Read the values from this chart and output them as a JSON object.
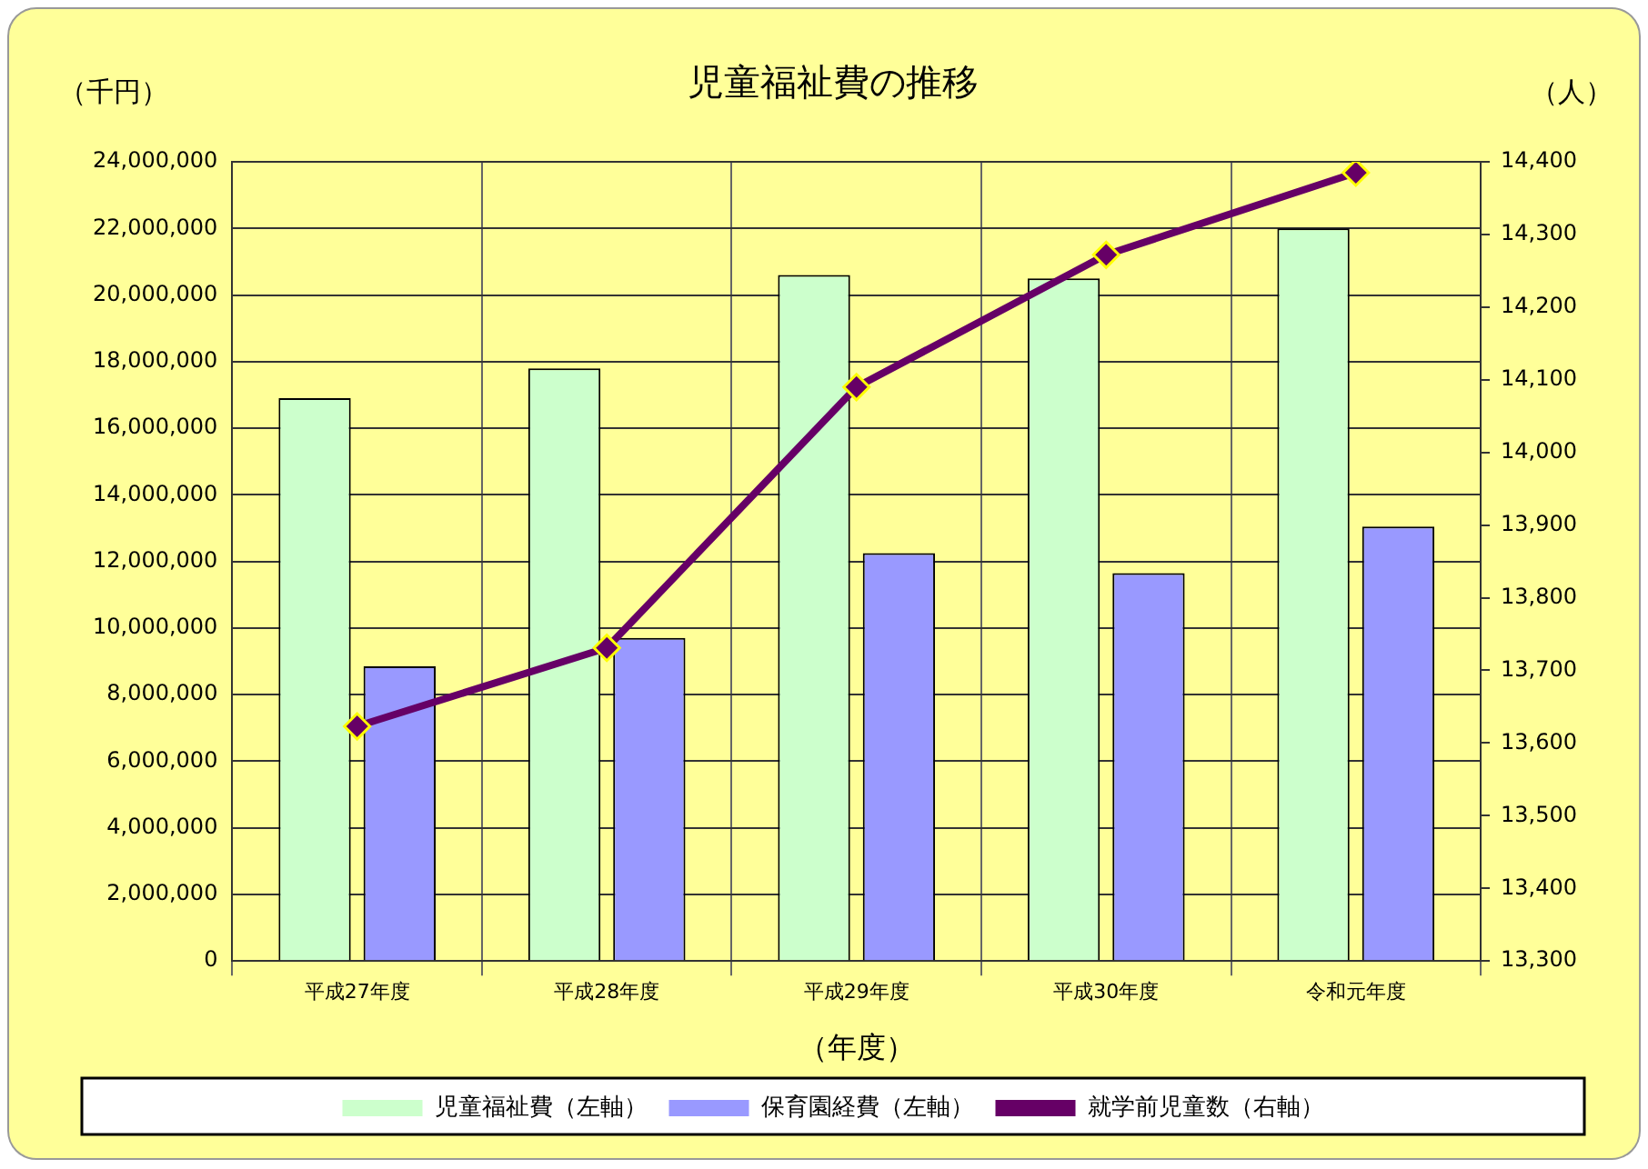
{
  "chart_data": {
    "type": "bar",
    "title": "児童福祉費の推移",
    "xlabel": "（年度）",
    "ylabel": "（千円）",
    "y2label": "（人）",
    "categories": [
      "平成27年度",
      "平成28年度",
      "平成29年度",
      "平成30年度",
      "令和元年度"
    ],
    "series": [
      {
        "name": "児童福祉費（左軸）",
        "color": "#ccffcc",
        "values": [
          16900000,
          17800000,
          20600000,
          20500000,
          22000000
        ]
      },
      {
        "name": "保育園経費（左軸）",
        "color": "#9999ff",
        "values": [
          8850000,
          9700000,
          12250000,
          11650000,
          13050000
        ]
      },
      {
        "name": "就学前児童数（右軸）",
        "type": "line",
        "axis": "y2",
        "color": "#660066",
        "marker": "diamond",
        "values": [
          13623,
          13731,
          14090,
          14272,
          14385
        ]
      }
    ],
    "ylim": [
      0,
      24000000
    ],
    "yticks": [
      0,
      {
        "value": 2000000,
        "label": "2,000,000"
      },
      {
        "value": 4000000,
        "label": "4,000,000"
      },
      {
        "value": 6000000,
        "label": "6,000,000"
      },
      {
        "value": 8000000,
        "label": "8,000,000"
      },
      {
        "value": 10000000,
        "label": "10,000,000"
      },
      {
        "value": 12000000,
        "label": "12,000,000"
      },
      {
        "value": 14000000,
        "label": "14,000,000"
      },
      {
        "value": 16000000,
        "label": "16,000,000"
      },
      {
        "value": 18000000,
        "label": "18,000,000"
      },
      {
        "value": 20000000,
        "label": "20,000,000"
      },
      {
        "value": 22000000,
        "label": "22,000,000"
      },
      {
        "value": 24000000,
        "label": "24,000,000"
      }
    ],
    "y2lim": [
      13300,
      14400
    ],
    "y2ticks": [
      {
        "value": 13300,
        "label": "13,300"
      },
      {
        "value": 13400,
        "label": "13,400"
      },
      {
        "value": 13500,
        "label": "13,500"
      },
      {
        "value": 13600,
        "label": "13,600"
      },
      {
        "value": 13700,
        "label": "13,700"
      },
      {
        "value": 13800,
        "label": "13,800"
      },
      {
        "value": 13900,
        "label": "13,900"
      },
      {
        "value": 14000,
        "label": "14,000"
      },
      {
        "value": 14100,
        "label": "14,100"
      },
      {
        "value": 14200,
        "label": "14,200"
      },
      {
        "value": 14300,
        "label": "14,300"
      },
      {
        "value": 14400,
        "label": "14,400"
      }
    ],
    "grid": true,
    "legend": "bottom"
  }
}
